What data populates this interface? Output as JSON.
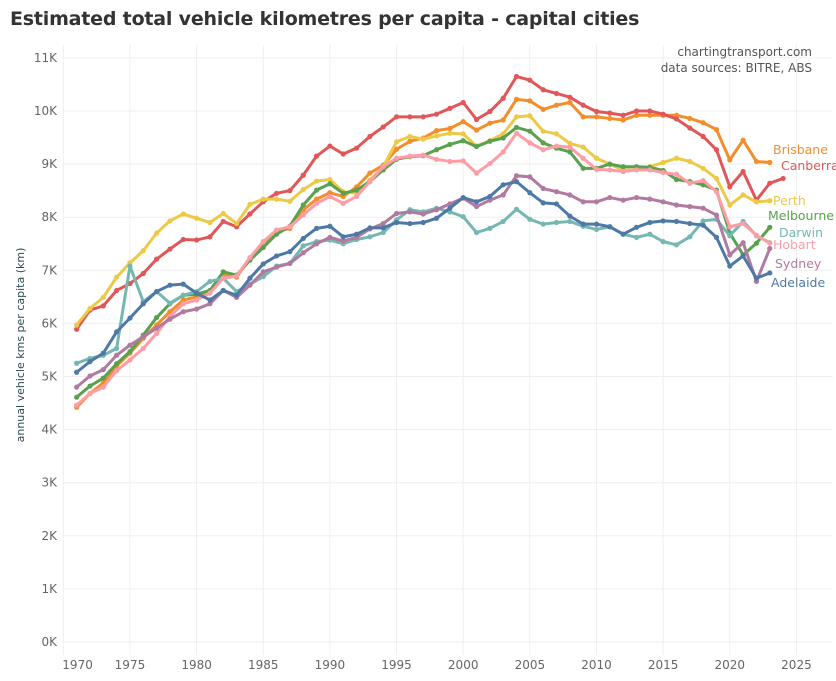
{
  "chart_data": {
    "type": "line",
    "title": "Estimated total vehicle kilometres per capita - capital cities",
    "annotations": [
      "chartingtransport.com",
      "data sources: BITRE, ABS"
    ],
    "ylabel": "annual vehicle kms per capita (km)",
    "xlabel": "",
    "value_unit": "thousand km",
    "ylim": [
      0,
      11
    ],
    "xlim": [
      1970,
      2027
    ],
    "x_ticks": [
      "1970",
      "1975",
      "1980",
      "1985",
      "1990",
      "1995",
      "2000",
      "2005",
      "2010",
      "2015",
      "2020",
      "2025"
    ],
    "y_ticks": [
      "0K",
      "1K",
      "2K",
      "3K",
      "4K",
      "5K",
      "6K",
      "7K",
      "8K",
      "9K",
      "10K",
      "11K"
    ],
    "grid": true,
    "legend": "direct labels at line ends (right)",
    "series": [
      {
        "name": "Brisbane",
        "color": "#f28e2b",
        "start_year": 1971,
        "values": [
          4.42,
          4.68,
          4.88,
          5.2,
          5.44,
          5.72,
          5.97,
          6.22,
          6.44,
          6.5,
          6.6,
          6.91,
          6.87,
          7.23,
          7.48,
          7.73,
          7.79,
          8.14,
          8.34,
          8.46,
          8.39,
          8.57,
          8.83,
          8.98,
          9.28,
          9.43,
          9.49,
          9.63,
          9.67,
          9.8,
          9.64,
          9.77,
          9.83,
          10.22,
          10.19,
          10.03,
          10.11,
          10.16,
          9.89,
          9.89,
          9.86,
          9.83,
          9.92,
          9.92,
          9.92,
          9.92,
          9.86,
          9.78,
          9.65,
          9.08,
          9.45,
          9.05,
          9.03
        ]
      },
      {
        "name": "Canberra",
        "color": "#e15759",
        "start_year": 1971,
        "values": [
          5.89,
          6.25,
          6.33,
          6.62,
          6.75,
          6.94,
          7.21,
          7.4,
          7.58,
          7.57,
          7.63,
          7.92,
          7.82,
          8.06,
          8.29,
          8.45,
          8.5,
          8.79,
          9.15,
          9.34,
          9.19,
          9.3,
          9.52,
          9.7,
          9.89,
          9.89,
          9.89,
          9.94,
          10.05,
          10.16,
          9.84,
          9.99,
          10.24,
          10.65,
          10.58,
          10.4,
          10.33,
          10.26,
          10.11,
          9.99,
          9.96,
          9.92,
          10.0,
          10.0,
          9.94,
          9.85,
          9.68,
          9.52,
          9.27,
          8.57,
          8.86,
          8.32,
          8.64,
          8.73
        ]
      },
      {
        "name": "Perth",
        "color": "#edc948",
        "start_year": 1971,
        "values": [
          5.97,
          6.28,
          6.49,
          6.87,
          7.14,
          7.37,
          7.7,
          7.93,
          8.06,
          7.98,
          7.9,
          8.07,
          7.88,
          8.24,
          8.34,
          8.34,
          8.3,
          8.52,
          8.68,
          8.71,
          8.48,
          8.45,
          8.7,
          8.95,
          9.42,
          9.52,
          9.47,
          9.53,
          9.58,
          9.57,
          9.34,
          9.44,
          9.57,
          9.89,
          9.91,
          9.62,
          9.57,
          9.39,
          9.32,
          9.11,
          9.0,
          8.89,
          8.89,
          8.95,
          9.03,
          9.11,
          9.05,
          8.92,
          8.73,
          8.23,
          8.42,
          8.29,
          8.31
        ]
      },
      {
        "name": "Melbourne",
        "color": "#59a14f",
        "start_year": 1971,
        "values": [
          4.61,
          4.82,
          4.97,
          5.24,
          5.47,
          5.78,
          6.11,
          6.37,
          6.53,
          6.55,
          6.62,
          6.97,
          6.91,
          7.19,
          7.43,
          7.68,
          7.83,
          8.23,
          8.51,
          8.63,
          8.45,
          8.51,
          8.67,
          8.89,
          9.09,
          9.14,
          9.16,
          9.27,
          9.37,
          9.44,
          9.33,
          9.43,
          9.49,
          9.69,
          9.62,
          9.4,
          9.3,
          9.23,
          8.92,
          8.92,
          9.0,
          8.95,
          8.95,
          8.94,
          8.88,
          8.71,
          8.67,
          8.61,
          8.51,
          7.7,
          7.29,
          7.51,
          7.81
        ]
      },
      {
        "name": "Darwin",
        "color": "#76b7b2",
        "start_year": 1971,
        "values": [
          5.25,
          5.34,
          5.4,
          5.53,
          7.08,
          6.41,
          6.6,
          6.38,
          6.53,
          6.6,
          6.79,
          6.85,
          6.6,
          6.74,
          6.88,
          7.08,
          7.13,
          7.46,
          7.54,
          7.57,
          7.5,
          7.58,
          7.63,
          7.71,
          7.95,
          8.14,
          8.1,
          8.17,
          8.1,
          8.01,
          7.71,
          7.79,
          7.92,
          8.15,
          7.96,
          7.87,
          7.9,
          7.92,
          7.83,
          7.77,
          7.82,
          7.68,
          7.62,
          7.68,
          7.54,
          7.48,
          7.63,
          7.93,
          7.96,
          7.65,
          7.92,
          7.65,
          7.52
        ]
      },
      {
        "name": "Hobart",
        "color": "#ff9da7",
        "start_year": 1971,
        "values": [
          4.46,
          4.68,
          4.8,
          5.11,
          5.31,
          5.53,
          5.81,
          6.13,
          6.37,
          6.44,
          6.57,
          6.85,
          6.89,
          7.24,
          7.54,
          7.76,
          7.82,
          8.04,
          8.26,
          8.39,
          8.26,
          8.39,
          8.67,
          8.95,
          9.11,
          9.15,
          9.17,
          9.09,
          9.05,
          9.06,
          8.83,
          9.01,
          9.23,
          9.58,
          9.4,
          9.27,
          9.34,
          9.32,
          9.11,
          8.9,
          8.89,
          8.86,
          8.89,
          8.89,
          8.84,
          8.81,
          8.64,
          8.69,
          8.48,
          7.82,
          7.88,
          7.66,
          7.51
        ]
      },
      {
        "name": "Sydney",
        "color": "#b07aa1",
        "start_year": 1971,
        "values": [
          4.8,
          5.01,
          5.13,
          5.4,
          5.59,
          5.75,
          5.91,
          6.08,
          6.22,
          6.27,
          6.37,
          6.62,
          6.49,
          6.72,
          6.97,
          7.06,
          7.13,
          7.33,
          7.5,
          7.62,
          7.55,
          7.62,
          7.78,
          7.88,
          8.07,
          8.1,
          8.06,
          8.14,
          8.25,
          8.36,
          8.2,
          8.32,
          8.42,
          8.78,
          8.76,
          8.54,
          8.48,
          8.42,
          8.29,
          8.29,
          8.37,
          8.32,
          8.37,
          8.34,
          8.29,
          8.23,
          8.2,
          8.17,
          8.04,
          7.29,
          7.52,
          6.79,
          7.41
        ]
      },
      {
        "name": "Adelaide",
        "color": "#4e79a7",
        "start_year": 1971,
        "values": [
          5.08,
          5.28,
          5.44,
          5.84,
          6.1,
          6.37,
          6.6,
          6.72,
          6.74,
          6.57,
          6.44,
          6.62,
          6.53,
          6.85,
          7.12,
          7.27,
          7.35,
          7.6,
          7.79,
          7.83,
          7.63,
          7.68,
          7.8,
          7.8,
          7.9,
          7.88,
          7.9,
          7.98,
          8.17,
          8.37,
          8.29,
          8.39,
          8.61,
          8.67,
          8.46,
          8.27,
          8.25,
          8.02,
          7.87,
          7.87,
          7.82,
          7.68,
          7.81,
          7.9,
          7.93,
          7.92,
          7.88,
          7.85,
          7.62,
          7.08,
          7.27,
          6.85,
          6.95
        ]
      }
    ]
  }
}
